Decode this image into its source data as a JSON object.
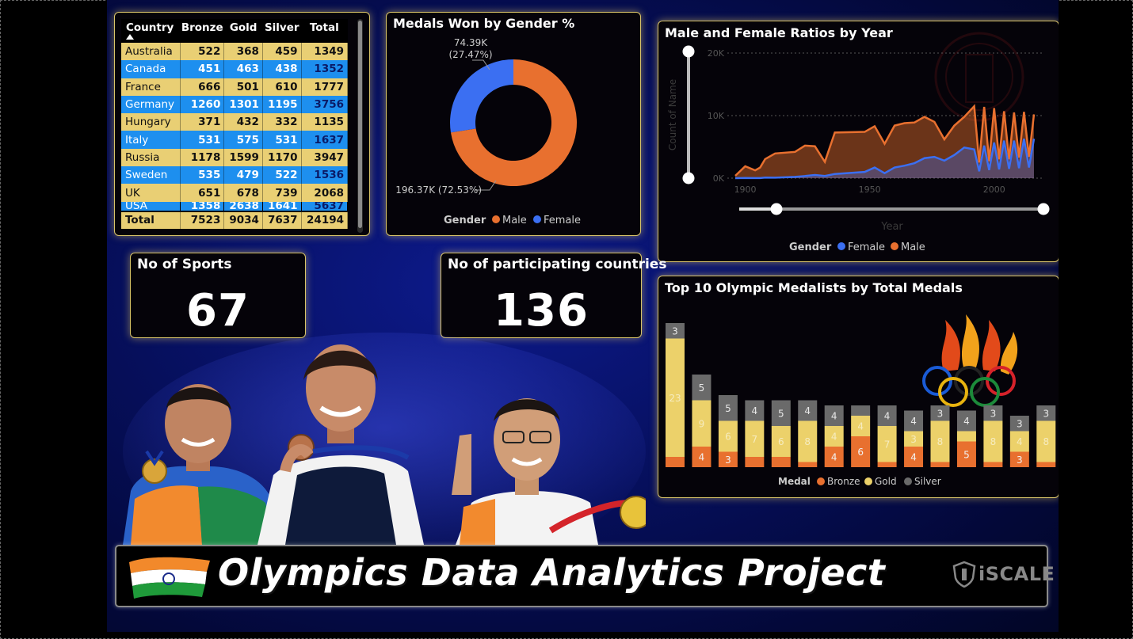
{
  "medal_table": {
    "headers": [
      "Country",
      "Bronze",
      "Gold",
      "Silver",
      "Total"
    ],
    "rows": [
      {
        "country": "Australia",
        "bronze": "522",
        "gold": "368",
        "silver": "459",
        "total": "1349"
      },
      {
        "country": "Canada",
        "bronze": "451",
        "gold": "463",
        "silver": "438",
        "total": "1352"
      },
      {
        "country": "France",
        "bronze": "666",
        "gold": "501",
        "silver": "610",
        "total": "1777"
      },
      {
        "country": "Germany",
        "bronze": "1260",
        "gold": "1301",
        "silver": "1195",
        "total": "3756"
      },
      {
        "country": "Hungary",
        "bronze": "371",
        "gold": "432",
        "silver": "332",
        "total": "1135"
      },
      {
        "country": "Italy",
        "bronze": "531",
        "gold": "575",
        "silver": "531",
        "total": "1637"
      },
      {
        "country": "Russia",
        "bronze": "1178",
        "gold": "1599",
        "silver": "1170",
        "total": "3947"
      },
      {
        "country": "Sweden",
        "bronze": "535",
        "gold": "479",
        "silver": "522",
        "total": "1536"
      },
      {
        "country": "UK",
        "bronze": "651",
        "gold": "678",
        "silver": "739",
        "total": "2068"
      },
      {
        "country": "USA",
        "bronze": "1358",
        "gold": "2638",
        "silver": "1641",
        "total": "5637"
      }
    ],
    "totals": {
      "country": "Total",
      "bronze": "7523",
      "gold": "9034",
      "silver": "7637",
      "total": "24194"
    }
  },
  "cards": {
    "sports": {
      "title": "No of Sports",
      "value": "67"
    },
    "countries": {
      "title": "No of participating countries",
      "value": "136"
    }
  },
  "banner": {
    "title": "Olympics Data Analytics Project",
    "logo_text": "iSCALE"
  },
  "colors": {
    "male": "#e8702f",
    "female": "#3b6ff2",
    "bronze": "#e8702f",
    "gold": "#ecd16a",
    "silver": "#6a6a6a",
    "panel_border": "#d9c46a"
  },
  "chart_data": [
    {
      "type": "pie",
      "title": "Medals Won by Gender %",
      "legend_title": "Gender",
      "legend_position": "bottom",
      "slices": [
        {
          "name": "Male",
          "value": 196370,
          "label": "196.37K (72.53%)"
        },
        {
          "name": "Female",
          "value": 74390,
          "label": "74.39K (27.47%)"
        }
      ]
    },
    {
      "type": "area",
      "title": "Male and Female Ratios by Year",
      "xlabel": "Year",
      "ylabel": "Count of Name",
      "legend_title": "Gender",
      "legend_position": "bottom",
      "ylim": [
        0,
        20000
      ],
      "xlim": [
        1896,
        2016
      ],
      "y_ticks": [
        {
          "value": 0,
          "label": "0K"
        },
        {
          "value": 10000,
          "label": "10K"
        },
        {
          "value": 20000,
          "label": "20K"
        }
      ],
      "x_ticks": [
        1900,
        1950,
        2000
      ],
      "x": [
        1896,
        1900,
        1904,
        1906,
        1908,
        1912,
        1920,
        1924,
        1928,
        1932,
        1936,
        1948,
        1952,
        1956,
        1960,
        1964,
        1968,
        1972,
        1976,
        1980,
        1984,
        1988,
        1992,
        1994,
        1996,
        1998,
        2000,
        2002,
        2004,
        2006,
        2008,
        2010,
        2012,
        2014,
        2016
      ],
      "series": [
        {
          "name": "Male",
          "values": [
            380,
            1900,
            1250,
            1700,
            3050,
            3950,
            4200,
            5200,
            5100,
            2600,
            7300,
            7400,
            8300,
            5500,
            8400,
            8800,
            8900,
            9800,
            9000,
            6200,
            8400,
            9800,
            11500,
            2500,
            11400,
            2700,
            11200,
            3000,
            10700,
            3000,
            10500,
            3300,
            10600,
            3400,
            10200
          ]
        },
        {
          "name": "Female",
          "values": [
            0,
            30,
            20,
            10,
            100,
            80,
            200,
            340,
            500,
            350,
            670,
            1000,
            1700,
            800,
            1700,
            2000,
            2400,
            3200,
            3400,
            2800,
            3700,
            4900,
            4600,
            1100,
            5200,
            1300,
            5700,
            1400,
            6000,
            1500,
            6000,
            1600,
            6300,
            1700,
            6300
          ]
        }
      ]
    },
    {
      "type": "bar",
      "title": "Top 10 Olympic Medalists by Total Medals",
      "legend_title": "Medal",
      "legend_position": "bottom",
      "series": [
        {
          "name": "Bronze",
          "values": [
            2,
            4,
            3,
            2,
            2,
            1,
            4,
            6,
            1,
            4,
            1,
            5,
            1,
            3,
            1
          ]
        },
        {
          "name": "Gold",
          "values": [
            23,
            9,
            6,
            7,
            6,
            8,
            4,
            4,
            7,
            3,
            8,
            2,
            8,
            4,
            8
          ]
        },
        {
          "name": "Silver",
          "values": [
            3,
            5,
            5,
            4,
            5,
            4,
            4,
            2,
            4,
            4,
            3,
            4,
            3,
            3,
            3
          ]
        }
      ]
    }
  ]
}
